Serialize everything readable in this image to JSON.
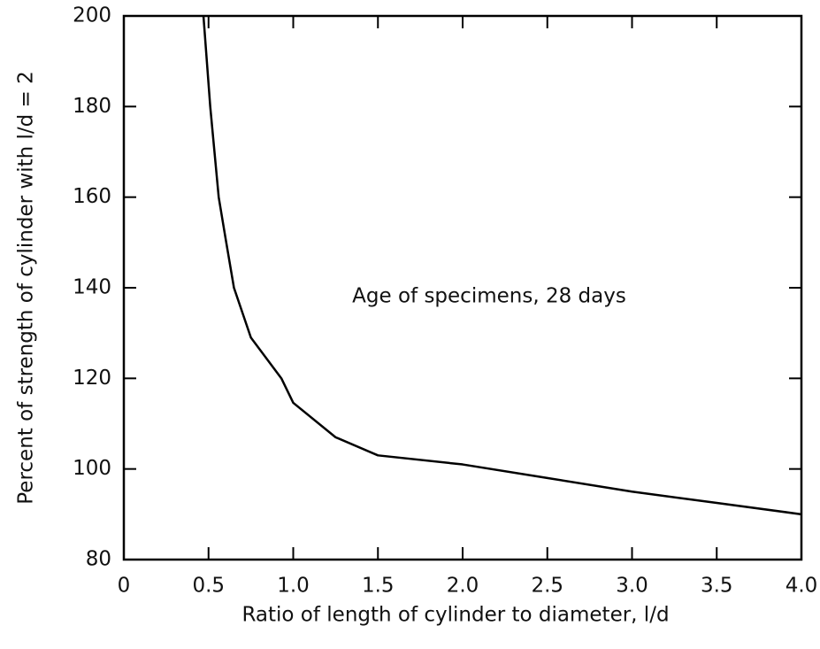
{
  "chart_data": {
    "type": "line",
    "x_label": "Ratio of length of cylinder to diameter, l/d",
    "y_label": "Percent of strength of cylinder with l/d = 2",
    "annotation": "Age of specimens, 28 days",
    "x": [
      0.47,
      0.51,
      0.56,
      0.6,
      0.65,
      0.75,
      0.93,
      1.0,
      1.25,
      1.5,
      2.0,
      2.5,
      3.0,
      3.5,
      4.0
    ],
    "series": [
      {
        "name": "Age of specimens, 28 days",
        "color": "#000000",
        "values": [
          200,
          180,
          160,
          151,
          140,
          129,
          120,
          114.6,
          107,
          103,
          101,
          98,
          95,
          92.5,
          90
        ]
      }
    ],
    "xlim": [
      0,
      4.0
    ],
    "ylim": [
      80,
      200
    ],
    "xticks": [
      0,
      0.5,
      {
        "value": 1,
        "label": "1.0"
      },
      1.5,
      {
        "value": 2,
        "label": "2.0"
      },
      2.5,
      {
        "value": 3,
        "label": "3.0"
      },
      3.5,
      {
        "value": 4,
        "label": "4.0"
      }
    ],
    "yticks": [
      80,
      100,
      120,
      140,
      160,
      180,
      200
    ],
    "grid": false
  }
}
